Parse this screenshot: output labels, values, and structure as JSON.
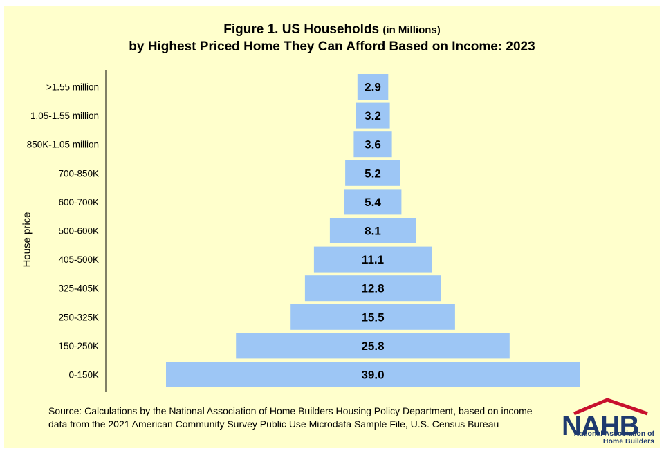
{
  "chart_data": {
    "type": "bar",
    "orientation": "horizontal-centered",
    "title": "Figure 1. US Households",
    "title_suffix": "(in Millions)",
    "subtitle": "by Highest Priced Home They Can Afford Based on Income: 2023",
    "ylabel": "House price",
    "categories": [
      ">1.55 million",
      "1.05-1.55 million",
      "850K-1.05 million",
      "700-850K",
      "600-700K",
      "500-600K",
      "405-500K",
      "325-405K",
      "250-325K",
      "150-250K",
      "0-150K"
    ],
    "values": [
      2.9,
      3.2,
      3.6,
      5.2,
      5.4,
      8.1,
      11.1,
      12.8,
      15.5,
      25.8,
      39.0
    ],
    "value_labels": [
      "2.9",
      "3.2",
      "3.6",
      "5.2",
      "5.4",
      "8.1",
      "11.1",
      "12.8",
      "15.5",
      "25.8",
      "39.0"
    ],
    "bar_color": "#9dc6f5",
    "xlim": [
      0,
      39.0
    ]
  },
  "source_text": "Source: Calculations by the National Association of Home Builders Housing Policy Department, based on income data from the 2021 American Community Survey Public Use Microdata Sample File, U.S. Census Bureau",
  "logo": {
    "text": "NAHB",
    "subtext": "National Association of Home Builders",
    "navy": "#1f3a6e",
    "red": "#c8102e"
  },
  "background_color": "#ffffcc"
}
